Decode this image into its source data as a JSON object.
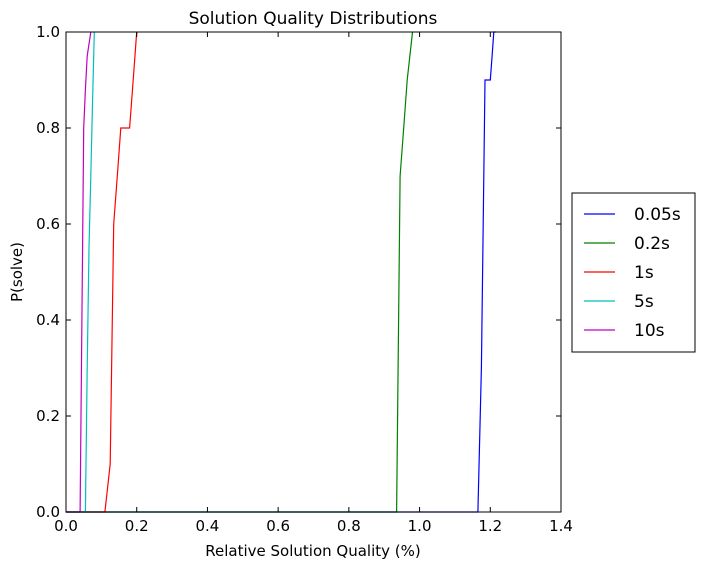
{
  "chart_data": {
    "type": "line",
    "title": "Solution Quality Distributions",
    "xlabel": "Relative Solution Quality (%)",
    "ylabel": "P(solve)",
    "xlim": [
      0.0,
      1.4
    ],
    "ylim": [
      0.0,
      1.0
    ],
    "xticks": [
      0.0,
      0.2,
      0.4,
      0.6,
      0.8,
      1.0,
      1.2,
      1.4
    ],
    "xtick_labels": [
      "0.0",
      "0.2",
      "0.4",
      "0.6",
      "0.8",
      "1.0",
      "1.2",
      "1.4"
    ],
    "yticks": [
      0.0,
      0.2,
      0.4,
      0.6,
      0.8,
      1.0
    ],
    "ytick_labels": [
      "0.0",
      "0.2",
      "0.4",
      "0.6",
      "0.8",
      "1.0"
    ],
    "grid": false,
    "legend_position": "right",
    "series": [
      {
        "name": "0.05s",
        "color": "#0000ff",
        "x": [
          0.0,
          1.165,
          1.175,
          1.185,
          1.19,
          1.2,
          1.205,
          1.21,
          1.215
        ],
        "y": [
          0.0,
          0.0,
          0.3,
          0.9,
          0.9,
          0.9,
          0.95,
          1.0,
          1.0
        ]
      },
      {
        "name": "0.2s",
        "color": "#008000",
        "x": [
          0.0,
          0.935,
          0.945,
          0.955,
          0.965,
          0.98
        ],
        "y": [
          0.0,
          0.0,
          0.7,
          0.8,
          0.9,
          1.0
        ]
      },
      {
        "name": "1s",
        "color": "#ff0000",
        "x": [
          0.0,
          0.11,
          0.125,
          0.135,
          0.145,
          0.155,
          0.165,
          0.18,
          0.19,
          0.2
        ],
        "y": [
          0.0,
          0.0,
          0.1,
          0.6,
          0.7,
          0.8,
          0.8,
          0.8,
          0.9,
          1.0
        ]
      },
      {
        "name": "5s",
        "color": "#00bfbf",
        "x": [
          0.0,
          0.055,
          0.06,
          0.065,
          0.07,
          0.075,
          0.08
        ],
        "y": [
          0.0,
          0.0,
          0.3,
          0.55,
          0.7,
          0.85,
          1.0
        ]
      },
      {
        "name": "10s",
        "color": "#bf00bf",
        "x": [
          0.0,
          0.04,
          0.045,
          0.05,
          0.055,
          0.06,
          0.07
        ],
        "y": [
          0.0,
          0.0,
          0.4,
          0.8,
          0.88,
          0.95,
          1.0
        ]
      }
    ]
  }
}
